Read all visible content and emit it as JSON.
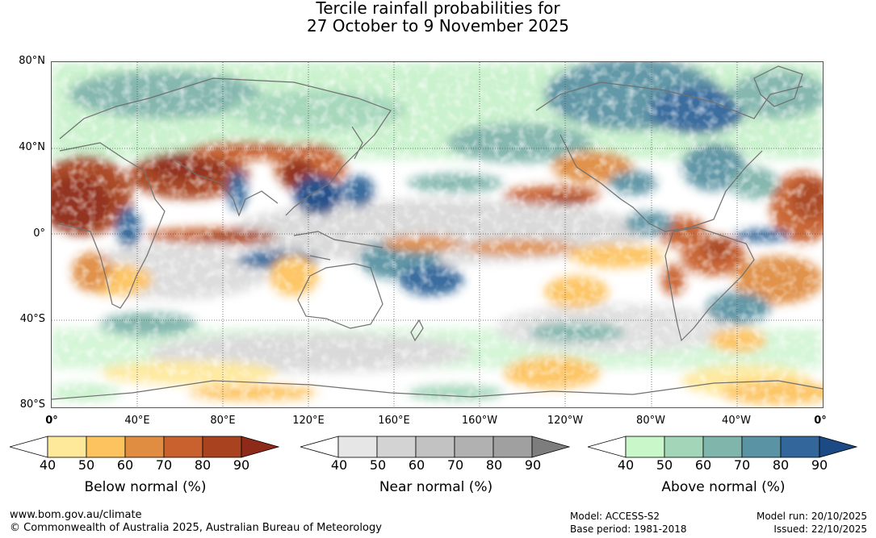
{
  "title": {
    "line1": "Tercile rainfall probabilities for",
    "line2": "27 October to 9 November 2025"
  },
  "lat_labels": [
    "80°N",
    "40°N",
    "0°",
    "40°S",
    "80°S"
  ],
  "lon_labels": [
    "0°",
    "40°E",
    "80°E",
    "120°E",
    "160°E",
    "160°W",
    "120°W",
    "80°W",
    "40°W",
    "0°"
  ],
  "colorbars": [
    {
      "name": "Below normal (%)",
      "ticks": [
        "40",
        "50",
        "60",
        "70",
        "80",
        "90"
      ],
      "colors": [
        "#ffffff",
        "#fee89a",
        "#fdc35e",
        "#e08d42",
        "#c8612e",
        "#a8421f",
        "#8e2a18"
      ]
    },
    {
      "name": "Near normal (%)",
      "ticks": [
        "40",
        "50",
        "60",
        "70",
        "80",
        "90"
      ],
      "colors": [
        "#ffffff",
        "#e6e6e6",
        "#d3d3d3",
        "#c2c2c2",
        "#b1b1b1",
        "#a0a0a0",
        "#7d7d7d"
      ]
    },
    {
      "name": "Above normal (%)",
      "ticks": [
        "40",
        "50",
        "60",
        "70",
        "80",
        "90"
      ],
      "colors": [
        "#ffffff",
        "#c9f7c9",
        "#a3d6b9",
        "#80b5ac",
        "#5a93a3",
        "#33669a",
        "#1c4a85"
      ]
    }
  ],
  "footer": {
    "url": "www.bom.gov.au/climate",
    "copyright": "© Commonwealth of Australia 2025, Australian Bureau of Meteorology",
    "model": "Model: ACCESS-S2",
    "base_period": "Base period: 1981-2018",
    "model_run": "Model run: 20/10/2025",
    "issued": "Issued: 22/10/2025"
  },
  "map": {
    "projection": "equirectangular",
    "lon_range": [
      "0°",
      "0°"
    ],
    "lat_range": [
      "80°S",
      "80°N"
    ],
    "coastline_color": "#707070",
    "gridlines": "dotted"
  }
}
